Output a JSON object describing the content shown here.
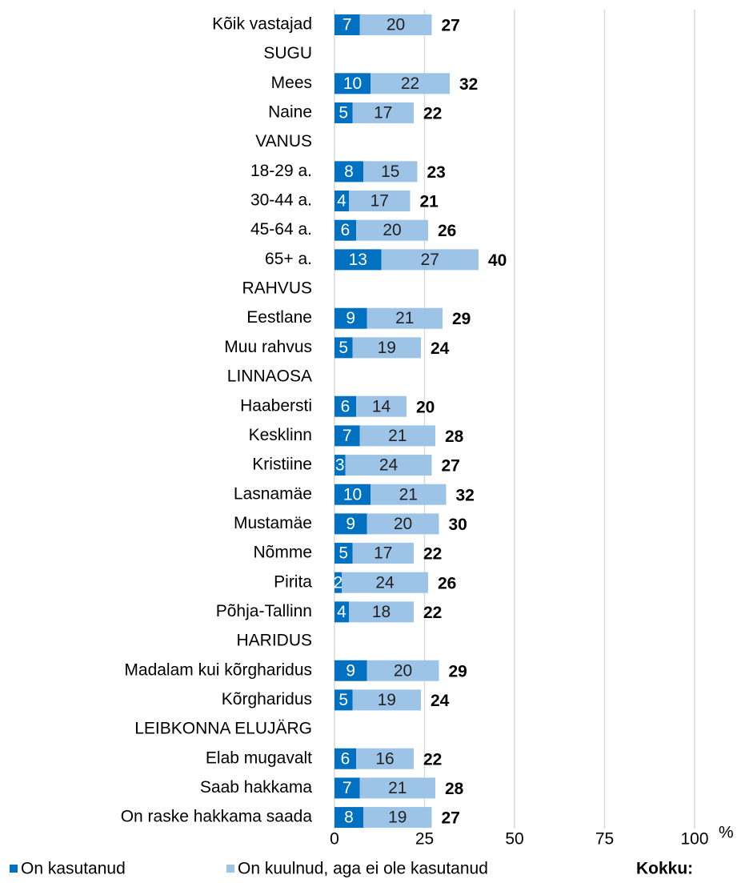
{
  "chart_data": {
    "type": "stacked-bar-horizontal",
    "categories": [
      "Kõik vastajad",
      "SUGU",
      "Mees",
      "Naine",
      "VANUS",
      "18-29 a.",
      "30-44 a.",
      "45-64 a.",
      "65+ a.",
      "RAHVUS",
      "Eestlane",
      "Muu rahvus",
      "LINNAOSA",
      "Haabersti",
      "Kesklinn",
      "Kristiine",
      "Lasnamäe",
      "Mustamäe",
      "Nõmme",
      "Pirita",
      "Põhja-Tallinn",
      "HARIDUS",
      "Madalam kui kõrgharidus",
      "Kõrgharidus",
      "LEIBKONNA ELUJÄRG",
      "Elab mugavalt",
      "Saab hakkama",
      "On raske hakkama saada"
    ],
    "series": [
      {
        "name": "On kasutanud",
        "color": "#0070c0",
        "values": [
          7,
          null,
          10,
          5,
          null,
          8,
          4,
          6,
          13,
          null,
          9,
          5,
          null,
          6,
          7,
          3,
          10,
          9,
          5,
          2,
          4,
          null,
          9,
          5,
          null,
          6,
          7,
          8
        ]
      },
      {
        "name": "On kuulnud, aga ei ole kasutanud",
        "color": "#9dc3e6",
        "values": [
          20,
          null,
          22,
          17,
          null,
          15,
          17,
          20,
          27,
          null,
          21,
          19,
          null,
          14,
          21,
          24,
          21,
          20,
          17,
          24,
          18,
          null,
          20,
          19,
          null,
          16,
          21,
          19
        ]
      },
      {
        "name": "Kokku:",
        "values": [
          27,
          null,
          32,
          22,
          null,
          23,
          21,
          26,
          40,
          null,
          29,
          24,
          null,
          20,
          28,
          27,
          32,
          30,
          22,
          26,
          22,
          null,
          29,
          24,
          null,
          22,
          28,
          27
        ]
      }
    ],
    "xlim": [
      0,
      100
    ],
    "xticks": [
      0,
      25,
      50,
      75,
      100
    ],
    "x_unit": "%",
    "grid": true
  }
}
